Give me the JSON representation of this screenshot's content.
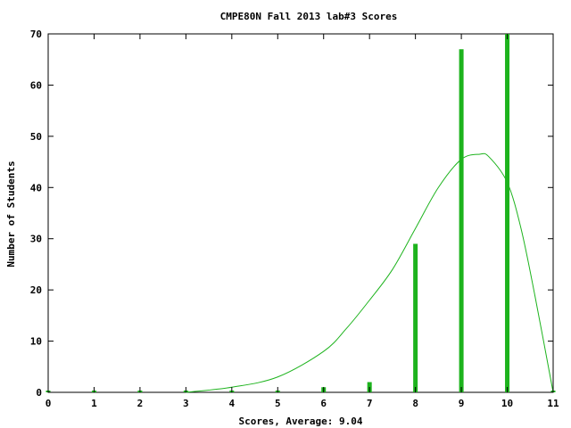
{
  "chart_data": {
    "type": "bar",
    "title": "CMPE80N Fall 2013 lab#3 Scores",
    "xlabel": "Scores, Average: 9.04",
    "ylabel": "Number of Students",
    "xlim": [
      0,
      11
    ],
    "ylim": [
      0,
      70
    ],
    "x_ticks": [
      0,
      1,
      2,
      3,
      4,
      5,
      6,
      7,
      8,
      9,
      10,
      11
    ],
    "y_ticks": [
      0,
      10,
      20,
      30,
      40,
      50,
      60,
      70
    ],
    "grid": false,
    "legend": "none",
    "bar_color": "#1db31d",
    "series": [
      {
        "type": "bar",
        "x": [
          0,
          1,
          2,
          3,
          4,
          5,
          6,
          7,
          8,
          9,
          10,
          11
        ],
        "values": [
          0,
          0,
          0,
          0,
          0,
          0,
          1,
          2,
          29,
          67,
          70,
          0
        ]
      },
      {
        "type": "line",
        "x": [
          3,
          4,
          5,
          6,
          6.5,
          7,
          7.5,
          8,
          8.5,
          9,
          9.4,
          9.6,
          10,
          10.3,
          10.6,
          11
        ],
        "values": [
          0,
          1,
          3,
          8,
          12.5,
          18,
          24,
          32,
          40,
          45.5,
          46.5,
          46,
          41,
          32,
          19,
          0
        ]
      }
    ]
  }
}
